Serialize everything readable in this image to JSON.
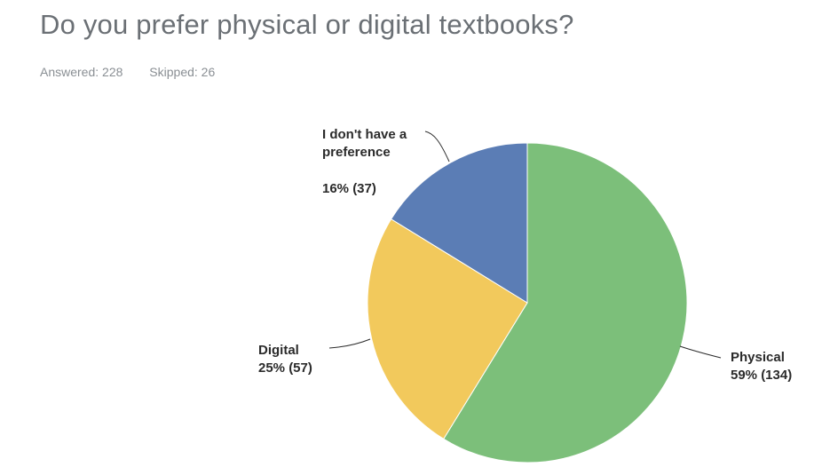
{
  "header": {
    "title": "Do you prefer physical or digital textbooks?",
    "answered": "Answered: 228",
    "skipped": "Skipped: 26"
  },
  "chart_data": {
    "type": "pie",
    "title": "Do you prefer physical or digital textbooks?",
    "slices": [
      {
        "label": "Physical",
        "percent": 59,
        "count": 134,
        "value_label": "59% (134)",
        "color": "#7cbf7a"
      },
      {
        "label": "Digital",
        "percent": 25,
        "count": 57,
        "value_label": "25% (57)",
        "color": "#f2c95c"
      },
      {
        "label": "I don't have a preference",
        "label_lines": [
          "I don't have a",
          "preference"
        ],
        "percent": 16,
        "count": 37,
        "value_label": "16% (37)",
        "color": "#5b7db5"
      }
    ],
    "start_angle_deg": 0,
    "direction": "clockwise",
    "legend": "none"
  }
}
